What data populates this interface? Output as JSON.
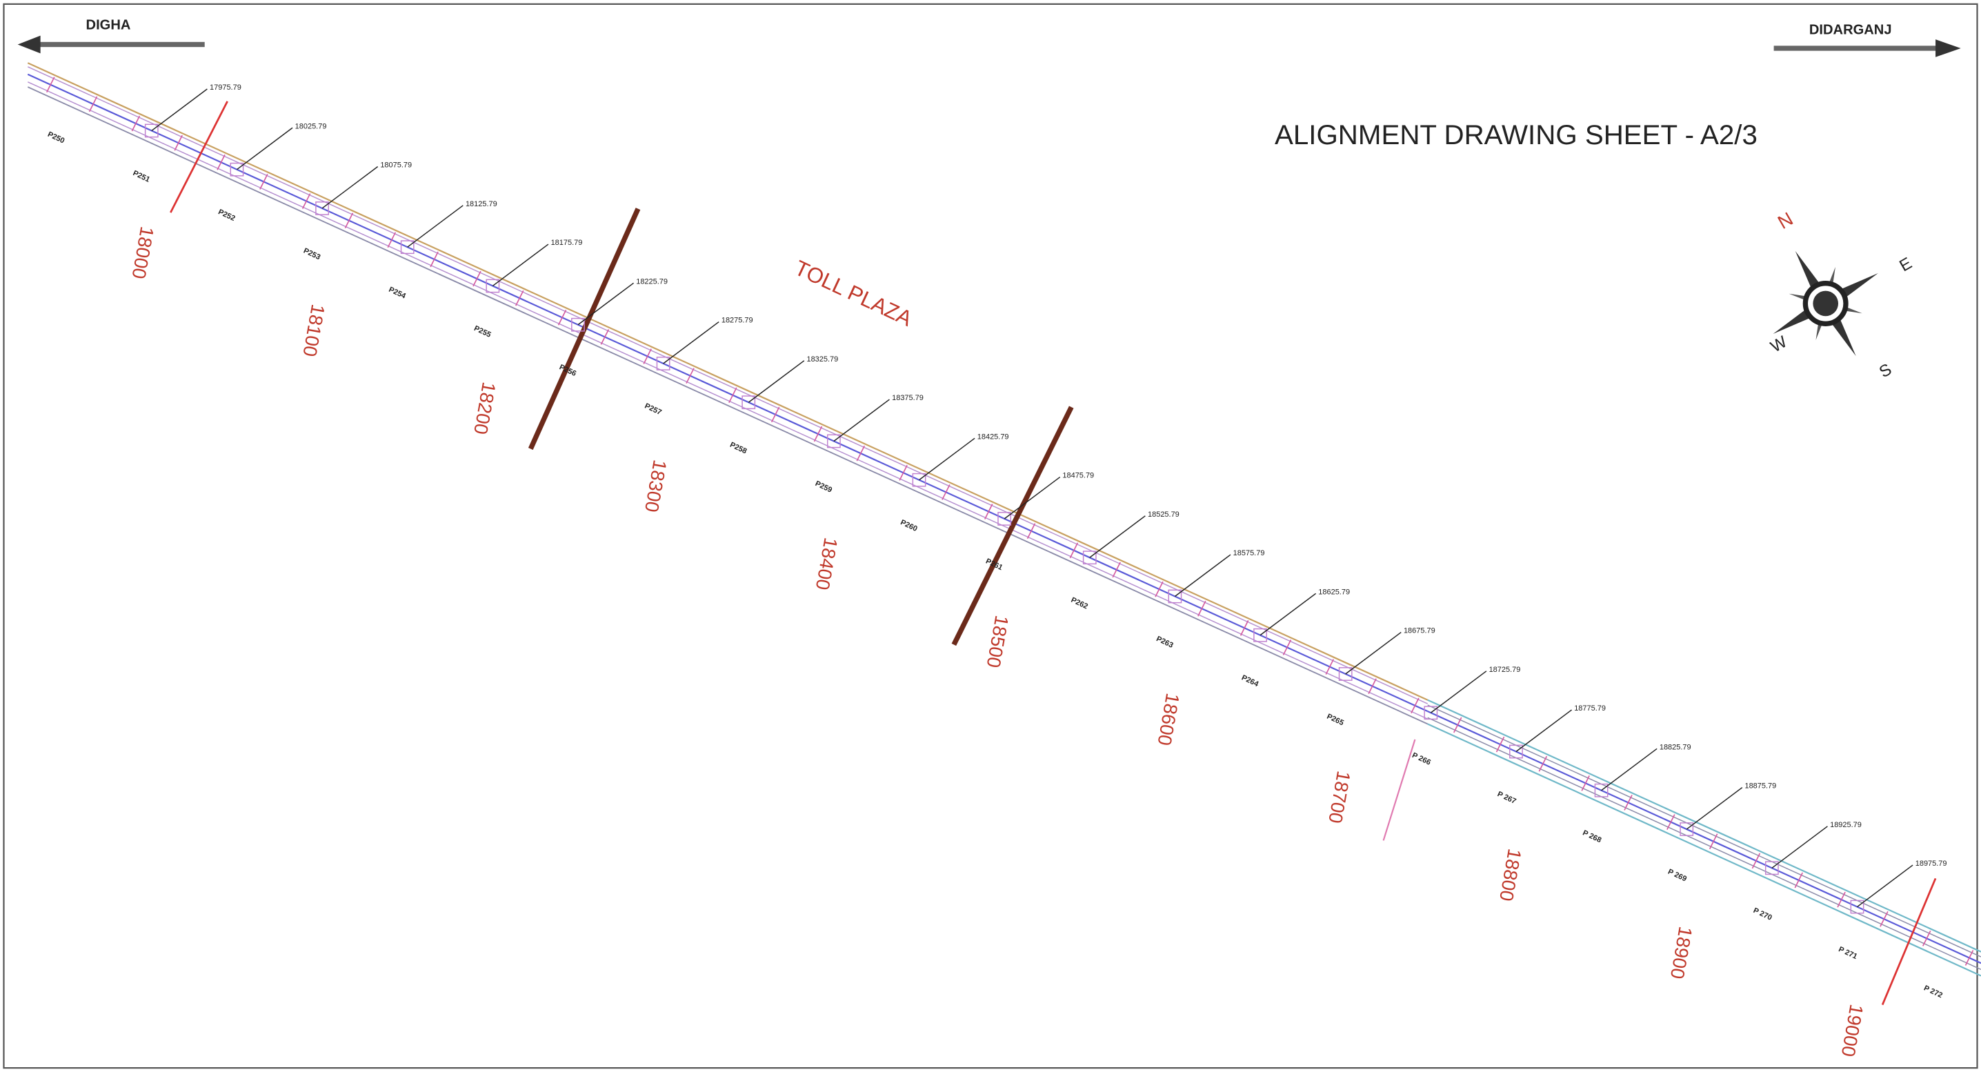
{
  "header": {
    "left_direction": "DIGHA",
    "right_direction": "DIDARGANJ",
    "title": "ALIGNMENT DRAWING SHEET - A2/3"
  },
  "toll_plaza": "TOLL PLAZA",
  "compass": {
    "north": "N",
    "east": "E",
    "south": "S",
    "west": "W"
  },
  "chainage_labels": [
    "17975.79",
    "18025.79",
    "18075.79",
    "18125.79",
    "18175.79",
    "18225.79",
    "18275.79",
    "18325.79",
    "18375.79",
    "18425.79",
    "18475.79",
    "18525.79",
    "18575.79",
    "18625.79",
    "18675.79",
    "18725.79",
    "18775.79",
    "18825.79",
    "18875.79",
    "18925.79",
    "18975.79"
  ],
  "pier_labels": [
    "P250",
    "P251",
    "P252",
    "P253",
    "P254",
    "P255",
    "P256",
    "P257",
    "P258",
    "P259",
    "P260",
    "P261",
    "P262",
    "P263",
    "P264",
    "P265",
    "P 266",
    "P 267",
    "P 268",
    "P 269",
    "P 270",
    "P 271",
    "P 272"
  ],
  "chainages": [
    "18000",
    "18100",
    "18200",
    "18300",
    "18400",
    "18500",
    "18600",
    "18700",
    "18800",
    "18900",
    "19000"
  ]
}
